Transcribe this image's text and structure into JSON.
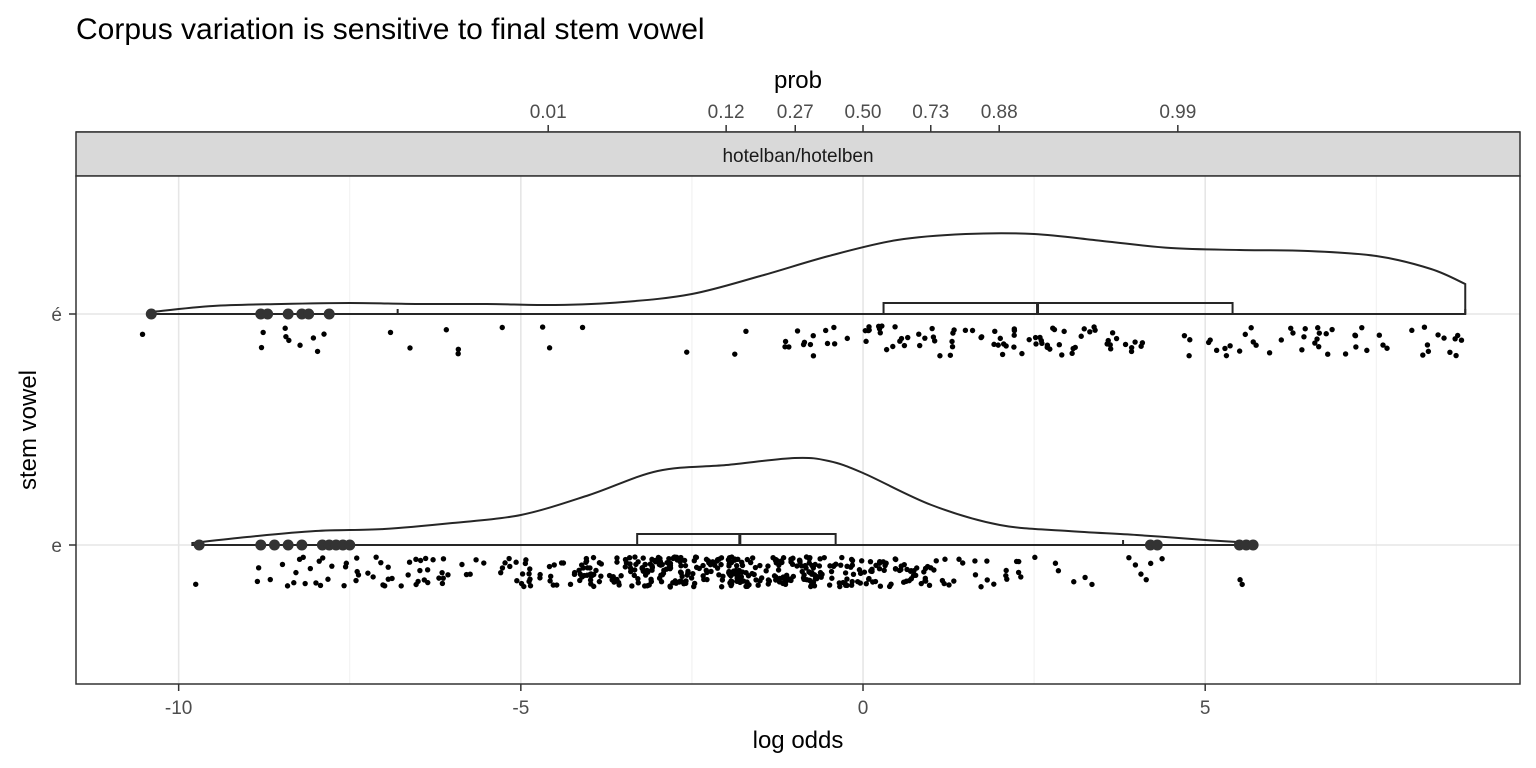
{
  "chart_data": {
    "type": "violin-box-jitter",
    "title": "Corpus variation is sensitive to final stem vowel",
    "facet": "hotelban/hotelben",
    "xlabel": "log odds",
    "ylabel": "stem vowel",
    "secondary_xlabel": "prob",
    "xlim": [
      -11.5,
      9.6
    ],
    "x_ticks": [
      -10,
      -5,
      0,
      5
    ],
    "secondary_ticks": [
      {
        "label": "0.01",
        "logodds": -4.6
      },
      {
        "label": "0.12",
        "logodds": -2.0
      },
      {
        "label": "0.27",
        "logodds": -0.99
      },
      {
        "label": "0.50",
        "logodds": 0.0
      },
      {
        "label": "0.73",
        "logodds": 0.99
      },
      {
        "label": "0.88",
        "logodds": 1.99
      },
      {
        "label": "0.99",
        "logodds": 4.6
      }
    ],
    "categories": [
      "é",
      "e"
    ],
    "grid": true,
    "groups": [
      {
        "category": "é",
        "box": {
          "whisker_low": -6.8,
          "q1": 0.3,
          "median": 2.55,
          "q3": 5.4,
          "whisker_high": 8.8
        },
        "outliers": [
          -10.4,
          -8.8,
          -8.7,
          -8.4,
          -8.2,
          -8.1,
          -7.8
        ],
        "density": [
          [
            -10.4,
            0.02
          ],
          [
            -9.5,
            0.08
          ],
          [
            -8.5,
            0.1
          ],
          [
            -7.5,
            0.11
          ],
          [
            -6.5,
            0.1
          ],
          [
            -5.5,
            0.1
          ],
          [
            -4.5,
            0.09
          ],
          [
            -3.5,
            0.12
          ],
          [
            -2.5,
            0.2
          ],
          [
            -1.5,
            0.38
          ],
          [
            -0.5,
            0.58
          ],
          [
            0.5,
            0.74
          ],
          [
            1.5,
            0.8
          ],
          [
            2.5,
            0.8
          ],
          [
            3.5,
            0.73
          ],
          [
            4.5,
            0.66
          ],
          [
            5.5,
            0.64
          ],
          [
            6.5,
            0.63
          ],
          [
            7.5,
            0.58
          ],
          [
            8.3,
            0.45
          ],
          [
            8.8,
            0.3
          ]
        ],
        "jitter_seed": 11,
        "clusters": [
          {
            "low": -10.6,
            "high": -10.3,
            "n": 1
          },
          {
            "low": -8.9,
            "high": -7.6,
            "n": 9
          },
          {
            "low": -7.0,
            "high": -4.0,
            "n": 9
          },
          {
            "low": -3.0,
            "high": -1.5,
            "n": 3
          },
          {
            "low": -1.2,
            "high": 0.5,
            "n": 18
          },
          {
            "low": 0.0,
            "high": 4.0,
            "n": 72
          },
          {
            "low": 4.0,
            "high": 6.8,
            "n": 30
          },
          {
            "low": 6.8,
            "high": 8.9,
            "n": 22
          }
        ]
      },
      {
        "category": "e",
        "box": {
          "whisker_low": -7.5,
          "q1": -3.3,
          "median": -1.8,
          "q3": -0.4,
          "whisker_high": 3.8
        },
        "outliers": [
          -9.7,
          -8.8,
          -8.6,
          -8.4,
          -8.2,
          -7.9,
          -7.8,
          -7.7,
          -7.6,
          -7.5,
          4.2,
          4.3,
          5.5,
          5.6,
          5.7
        ],
        "density": [
          [
            -9.8,
            0.02
          ],
          [
            -9.0,
            0.08
          ],
          [
            -8.0,
            0.14
          ],
          [
            -7.0,
            0.16
          ],
          [
            -6.0,
            0.22
          ],
          [
            -5.0,
            0.3
          ],
          [
            -4.0,
            0.5
          ],
          [
            -3.0,
            0.74
          ],
          [
            -2.0,
            0.8
          ],
          [
            -1.0,
            0.87
          ],
          [
            -0.5,
            0.84
          ],
          [
            0.0,
            0.72
          ],
          [
            1.0,
            0.4
          ],
          [
            2.0,
            0.2
          ],
          [
            3.0,
            0.14
          ],
          [
            4.0,
            0.1
          ],
          [
            5.0,
            0.05
          ],
          [
            5.7,
            0.02
          ]
        ],
        "jitter_seed": 29,
        "clusters": [
          {
            "low": -9.8,
            "high": -9.6,
            "n": 1
          },
          {
            "low": -8.9,
            "high": -7.3,
            "n": 24
          },
          {
            "low": -7.3,
            "high": -5.0,
            "n": 40
          },
          {
            "low": -5.0,
            "high": -3.5,
            "n": 60
          },
          {
            "low": -3.5,
            "high": -0.5,
            "n": 260
          },
          {
            "low": -0.5,
            "high": 1.0,
            "n": 80
          },
          {
            "low": 1.0,
            "high": 2.5,
            "n": 22
          },
          {
            "low": 2.5,
            "high": 4.5,
            "n": 12
          },
          {
            "low": 5.5,
            "high": 5.8,
            "n": 2
          }
        ]
      }
    ]
  }
}
